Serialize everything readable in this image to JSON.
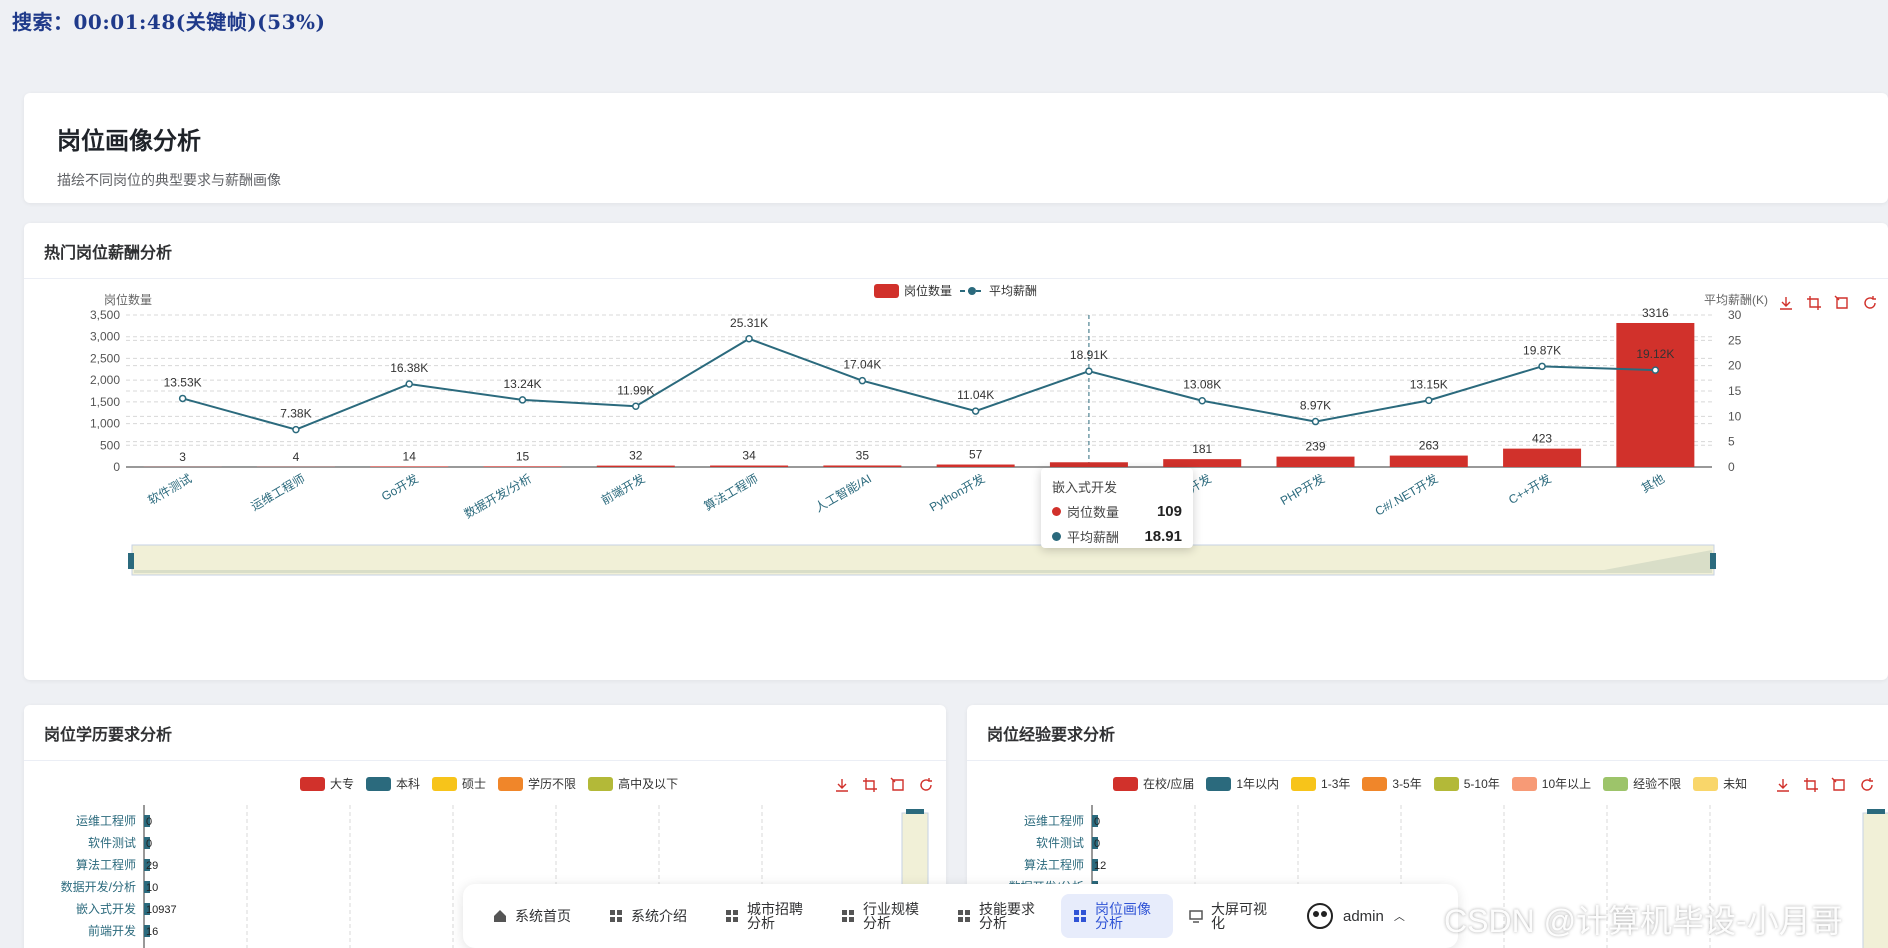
{
  "search_overlay": "搜索：00:01:48(关键帧)(53%)",
  "header": {
    "title": "岗位画像分析",
    "subtitle": "描绘不同岗位的典型要求与薪酬画像"
  },
  "main_chart": {
    "card_title": "热门岗位薪酬分析",
    "left_axis_label": "岗位数量",
    "right_axis_label": "平均薪酬(K)",
    "legend": [
      "岗位数量",
      "平均薪酬"
    ],
    "colors": {
      "bar": "#d1312b",
      "line": "#2b6a7d"
    },
    "tooltip": {
      "title": "嵌入式开发",
      "rows": [
        {
          "label": "岗位数量",
          "value": "109",
          "color": "#d1312b"
        },
        {
          "label": "平均薪酬",
          "value": "18.91",
          "color": "#2b6a7d"
        }
      ]
    }
  },
  "chart_data": [
    {
      "type": "bar",
      "categories": [
        "软件测试",
        "运维工程师",
        "Go开发",
        "数据开发/分析",
        "前端开发",
        "算法工程师",
        "人工智能/AI",
        "Python开发",
        "嵌入式开发",
        "Java开发",
        "PHP开发",
        "C#/.NET开发",
        "C++开发",
        "其他"
      ],
      "series": [
        {
          "name": "岗位数量",
          "type": "bar",
          "axis": "left",
          "values": [
            3,
            4,
            14,
            15,
            32,
            34,
            35,
            57,
            109,
            181,
            239,
            263,
            423,
            3316
          ],
          "labels": [
            "3",
            "4",
            "14",
            "15",
            "32",
            "34",
            "35",
            "57",
            "",
            "181",
            "239",
            "263",
            "423",
            "3316"
          ]
        },
        {
          "name": "平均薪酬",
          "type": "line",
          "axis": "right",
          "values": [
            13.53,
            7.38,
            16.38,
            13.24,
            11.99,
            25.31,
            17.04,
            11.04,
            18.91,
            13.08,
            8.97,
            13.15,
            19.87,
            19.12
          ],
          "labels": [
            "13.53K",
            "7.38K",
            "16.38K",
            "13.24K",
            "11.99K",
            "25.31K",
            "17.04K",
            "11.04K",
            "18.91K",
            "13.08K",
            "8.97K",
            "13.15K",
            "19.87K",
            "19.12K"
          ]
        }
      ],
      "ylabel": "岗位数量",
      "y2label": "平均薪酬(K)",
      "ylim": [
        0,
        3500
      ],
      "y2lim": [
        0,
        30
      ],
      "yticks": [
        "0",
        "500",
        "1,000",
        "1,500",
        "2,000",
        "2,500",
        "3,000",
        "3,500"
      ],
      "y2ticks": [
        "0",
        "5",
        "10",
        "15",
        "20",
        "25",
        "30"
      ],
      "grid": true,
      "legend": "top-center"
    },
    {
      "type": "bar",
      "title": "岗位学历要求分析",
      "orientation": "horizontal-stacked",
      "categories": [
        "运维工程师",
        "软件测试",
        "算法工程师",
        "数据开发/分析",
        "嵌入式开发",
        "前端开发"
      ],
      "series_names": [
        "大专",
        "本科",
        "硕士",
        "学历不限",
        "高中及以下"
      ],
      "colors": [
        "#d1312b",
        "#2b6a7d",
        "#f7c41a",
        "#f0862a",
        "#b3b938"
      ],
      "point_labels": [
        "0",
        "0",
        "29",
        "10",
        "10937",
        "16"
      ]
    },
    {
      "type": "bar",
      "title": "岗位经验要求分析",
      "orientation": "horizontal-stacked",
      "categories": [
        "运维工程师",
        "软件测试",
        "算法工程师",
        "数据开发/分析"
      ],
      "series_names": [
        "在校/应届",
        "1年以内",
        "1-3年",
        "3-5年",
        "5-10年",
        "10年以上",
        "经验不限",
        "未知"
      ],
      "colors": [
        "#d1312b",
        "#2b6a7d",
        "#f7c41a",
        "#f0862a",
        "#b3b938",
        "#f79a76",
        "#9dc46a",
        "#f9d66a"
      ],
      "point_labels": [
        "0",
        "0",
        "12",
        "1"
      ]
    }
  ],
  "edu_card": {
    "title": "岗位学历要求分析"
  },
  "exp_card": {
    "title": "岗位经验要求分析"
  },
  "nav": [
    {
      "label": "系统首页",
      "icon": "home-icon"
    },
    {
      "label": "系统介绍",
      "icon": "grid-icon"
    },
    {
      "label": "城市招聘分析",
      "icon": "grid-icon"
    },
    {
      "label": "行业规模分析",
      "icon": "grid-icon"
    },
    {
      "label": "技能要求分析",
      "icon": "grid-icon"
    },
    {
      "label": "岗位画像分析",
      "icon": "grid-icon",
      "active": true
    },
    {
      "label": "大屏可视化",
      "icon": "monitor-icon"
    }
  ],
  "user": {
    "name": "admin"
  },
  "watermark": "CSDN @计算机毕设-小月哥"
}
